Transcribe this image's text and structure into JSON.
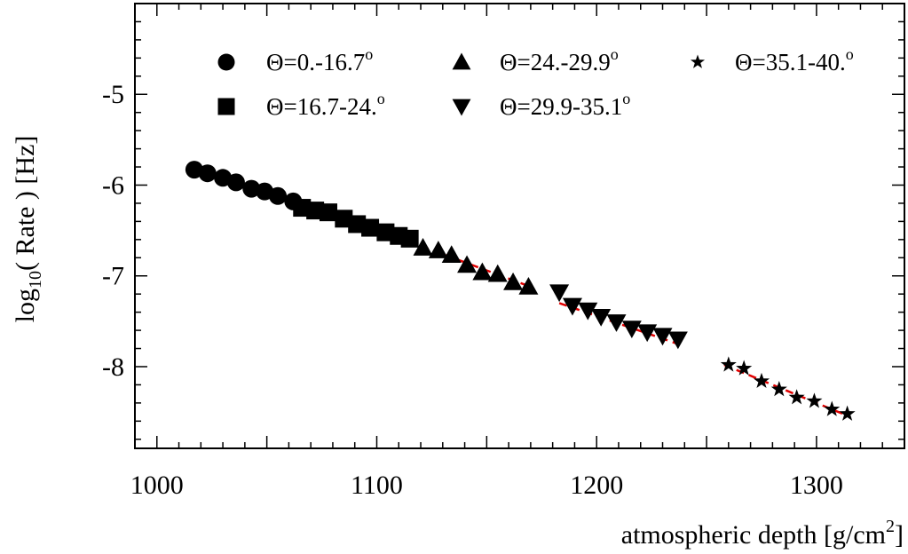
{
  "chart_data": {
    "type": "scatter",
    "xlabel": "atmospheric depth [g/cm",
    "xlabel_sup": "2",
    "xlabel_end": "]",
    "ylabel_pre": "log",
    "ylabel_sub": "10",
    "ylabel_post": "( Rate ) [Hz]",
    "xlim": [
      990,
      1340
    ],
    "ylim": [
      -8.9,
      -4.0
    ],
    "xticks": [
      {
        "value": 1000,
        "label": "1000"
      },
      {
        "value": 1100,
        "label": "1100"
      },
      {
        "value": 1200,
        "label": "1200"
      },
      {
        "value": 1300,
        "label": "1300"
      }
    ],
    "yticks": [
      {
        "value": -5,
        "label": "-5"
      },
      {
        "value": -6,
        "label": "-6"
      },
      {
        "value": -7,
        "label": "-7"
      },
      {
        "value": -8,
        "label": "-8"
      }
    ],
    "fit_color": "#e00000",
    "marker_color": "#000000",
    "series": [
      {
        "name": "Θ=0.-16.7",
        "name_sup": "o",
        "marker": "circle",
        "fit": [
          [
            1020,
            -5.86
          ],
          [
            1065,
            -6.22
          ]
        ],
        "points": [
          [
            1017,
            -5.83
          ],
          [
            1023,
            -5.87
          ],
          [
            1030,
            -5.92
          ],
          [
            1036,
            -5.97
          ],
          [
            1043,
            -6.04
          ],
          [
            1049,
            -6.07
          ],
          [
            1055,
            -6.12
          ],
          [
            1062,
            -6.18
          ]
        ]
      },
      {
        "name": "Θ=16.7-24.",
        "name_sup": "o",
        "marker": "square",
        "fit": [
          [
            1064,
            -6.21
          ],
          [
            1115,
            -6.61
          ]
        ],
        "points": [
          [
            1066,
            -6.25
          ],
          [
            1072,
            -6.28
          ],
          [
            1078,
            -6.3
          ],
          [
            1085,
            -6.37
          ],
          [
            1091,
            -6.43
          ],
          [
            1097,
            -6.47
          ],
          [
            1104,
            -6.52
          ],
          [
            1110,
            -6.56
          ],
          [
            1115,
            -6.59
          ]
        ]
      },
      {
        "name": "Θ=24.-29.9",
        "name_sup": "o",
        "marker": "triangle-up",
        "fit": [
          [
            1120,
            -6.67
          ],
          [
            1170,
            -7.12
          ]
        ],
        "points": [
          [
            1121,
            -6.69
          ],
          [
            1128,
            -6.72
          ],
          [
            1134,
            -6.77
          ],
          [
            1141,
            -6.88
          ],
          [
            1148,
            -6.96
          ],
          [
            1155,
            -6.98
          ],
          [
            1162,
            -7.07
          ],
          [
            1169,
            -7.12
          ]
        ]
      },
      {
        "name": "Θ=29.9-35.1",
        "name_sup": "o",
        "marker": "triangle-down",
        "fit": [
          [
            1183,
            -7.3
          ],
          [
            1237,
            -7.75
          ]
        ],
        "points": [
          [
            1183,
            -7.18
          ],
          [
            1189,
            -7.33
          ],
          [
            1196,
            -7.38
          ],
          [
            1202,
            -7.45
          ],
          [
            1209,
            -7.51
          ],
          [
            1216,
            -7.58
          ],
          [
            1223,
            -7.62
          ],
          [
            1230,
            -7.66
          ],
          [
            1237,
            -7.7
          ]
        ]
      },
      {
        "name": "Θ=35.1-40.",
        "name_sup": "o",
        "marker": "star",
        "fit": [
          [
            1258,
            -7.98
          ],
          [
            1315,
            -8.55
          ]
        ],
        "points": [
          [
            1260,
            -7.98
          ],
          [
            1267,
            -8.02
          ],
          [
            1275,
            -8.16
          ],
          [
            1283,
            -8.25
          ],
          [
            1291,
            -8.34
          ],
          [
            1299,
            -8.38
          ],
          [
            1307,
            -8.47
          ],
          [
            1314,
            -8.52
          ]
        ]
      }
    ]
  }
}
